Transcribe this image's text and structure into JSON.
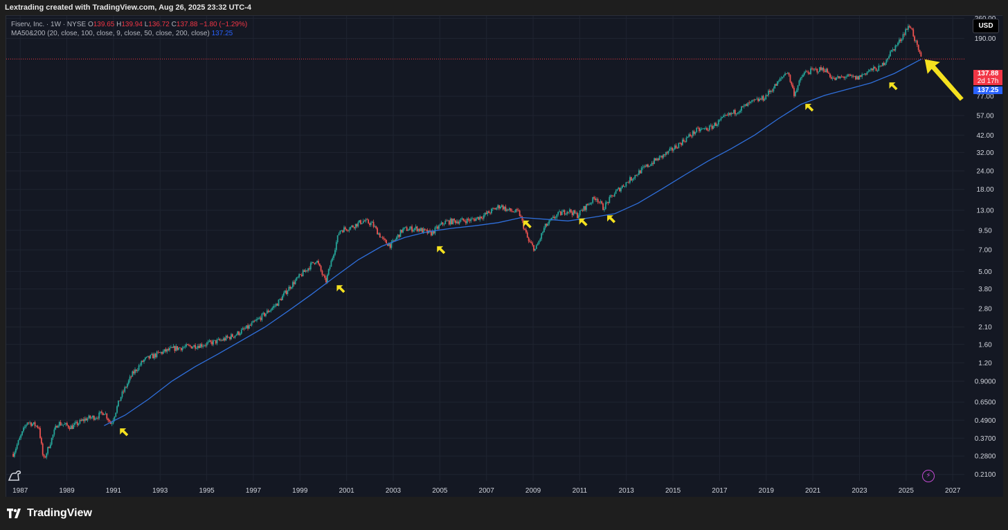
{
  "header": {
    "title": "Lextrading created with TradingView.com, Aug 26, 2025 23:32 UTC-4"
  },
  "legend": {
    "symbol": "Fiserv, Inc. · 1W · NYSE",
    "o_label": "O",
    "o_value": "139.65",
    "h_label": "H",
    "h_value": "139.94",
    "l_label": "L",
    "l_value": "136.72",
    "c_label": "C",
    "c_value": "137.88",
    "change": "−1.80 (−1.29%)",
    "indicator": "MA50&200 (20, close, 100, close, 9, close, 50, close, 200, close)",
    "indicator_value": "137.25"
  },
  "price_scale": {
    "currency": "USD",
    "last_price": "137.88",
    "countdown": "2d 17h",
    "ma_value": "137.25"
  },
  "footer": {
    "brand": "TradingView"
  },
  "colors": {
    "background": "#141823",
    "up": "#26a69a",
    "down": "#ef5350",
    "ma": "#2f6fdb",
    "arrow": "#f5e11f",
    "price_line": "#f23645",
    "ma_tag": "#2962ff"
  },
  "chart_data": {
    "type": "candlestick",
    "title": "Fiserv, Inc. · 1W · NYSE",
    "y_scale": "log",
    "ylim": [
      0.19,
      270
    ],
    "xlim": [
      1986.4,
      2027.5
    ],
    "grid": true,
    "x_ticks": [
      "1987",
      "1989",
      "1991",
      "1993",
      "1995",
      "1997",
      "1999",
      "2001",
      "2003",
      "2005",
      "2007",
      "2009",
      "2011",
      "2013",
      "2015",
      "2017",
      "2019",
      "2021",
      "2023",
      "2025",
      "2027"
    ],
    "y_ticks": [
      "260.00",
      "190.00",
      "77.00",
      "57.00",
      "42.00",
      "32.00",
      "24.00",
      "18.00",
      "13.00",
      "9.50",
      "7.00",
      "5.00",
      "3.80",
      "2.80",
      "2.10",
      "1.60",
      "1.20",
      "0.9000",
      "0.6500",
      "0.4900",
      "0.3700",
      "0.2800",
      "0.2100"
    ],
    "series": [
      {
        "name": "Price (weekly)",
        "x": [
          1986.7,
          1987.3,
          1987.8,
          1988.0,
          1988.6,
          1989.2,
          1989.8,
          1990.3,
          1990.6,
          1990.9,
          1991.3,
          1991.8,
          1992.3,
          1993.0,
          1993.6,
          1994.3,
          1994.9,
          1995.6,
          1996.2,
          1996.8,
          1997.4,
          1998.0,
          1998.6,
          1999.2,
          1999.7,
          2000.1,
          2000.7,
          2001.2,
          2001.7,
          2002.1,
          2002.6,
          2002.9,
          2003.4,
          2004.0,
          2004.6,
          2005.2,
          2005.8,
          2006.4,
          2006.9,
          2007.6,
          2007.9,
          2008.4,
          2008.8,
          2009.1,
          2009.5,
          2010.0,
          2010.5,
          2010.9,
          2011.3,
          2011.7,
          2012.0,
          2012.5,
          2013.0,
          2013.6,
          2014.2,
          2014.8,
          2015.4,
          2016.0,
          2016.6,
          2017.2,
          2017.8,
          2018.4,
          2018.9,
          2019.5,
          2019.9,
          2020.2,
          2020.6,
          2021.0,
          2021.5,
          2021.9,
          2022.4,
          2022.9,
          2023.4,
          2023.9,
          2024.3,
          2024.7,
          2025.0,
          2025.2,
          2025.5,
          2025.65
        ],
        "values": [
          0.29,
          0.48,
          0.44,
          0.26,
          0.47,
          0.44,
          0.5,
          0.52,
          0.56,
          0.46,
          0.7,
          1.0,
          1.25,
          1.4,
          1.5,
          1.55,
          1.6,
          1.7,
          1.85,
          2.1,
          2.5,
          3.0,
          4.0,
          5.0,
          6.0,
          4.2,
          9.5,
          10.0,
          11.0,
          10.5,
          8.0,
          7.5,
          9.6,
          9.8,
          9.0,
          10.8,
          11.0,
          11.2,
          12.0,
          14.0,
          13.0,
          12.5,
          8.0,
          7.0,
          10.0,
          12.0,
          13.0,
          12.0,
          14.0,
          16.0,
          13.5,
          17.0,
          20.0,
          24.0,
          28.0,
          32.0,
          38.0,
          45.0,
          47.0,
          55.0,
          62.0,
          70.0,
          75.0,
          95.0,
          115.0,
          80.0,
          110.0,
          115.0,
          118.0,
          100.0,
          105.0,
          102.0,
          115.0,
          120.0,
          150.0,
          180.0,
          220.0,
          230.0,
          160.0,
          137.88
        ]
      },
      {
        "name": "MA50&200",
        "x": [
          1990.6,
          1991.5,
          1992.5,
          1993.5,
          1994.5,
          1995.5,
          1996.5,
          1997.5,
          1998.5,
          1999.5,
          2000.5,
          2001.5,
          2002.5,
          2003.5,
          2004.5,
          2005.5,
          2006.5,
          2007.5,
          2008.5,
          2009.5,
          2010.5,
          2011.5,
          2012.5,
          2013.5,
          2014.5,
          2015.5,
          2016.5,
          2017.5,
          2018.5,
          2019.5,
          2020.5,
          2021.5,
          2022.5,
          2023.5,
          2024.5,
          2025.65
        ],
        "values": [
          0.45,
          0.53,
          0.68,
          0.9,
          1.13,
          1.38,
          1.7,
          2.1,
          2.7,
          3.5,
          4.6,
          6.0,
          7.4,
          8.5,
          9.3,
          9.8,
          10.2,
          10.7,
          11.6,
          11.3,
          11.0,
          11.6,
          12.3,
          14.5,
          18.0,
          22.5,
          28.0,
          34.0,
          42.0,
          54.0,
          68.0,
          78.0,
          86.0,
          95.0,
          110.0,
          137.25
        ]
      }
    ],
    "annotations": [
      {
        "type": "arrow",
        "x": 1991.1,
        "y": 0.46
      },
      {
        "type": "arrow",
        "x": 2000.4,
        "y": 4.3
      },
      {
        "type": "arrow",
        "x": 2004.7,
        "y": 7.9
      },
      {
        "type": "arrow",
        "x": 2008.4,
        "y": 11.8
      },
      {
        "type": "arrow",
        "x": 2010.8,
        "y": 12.2
      },
      {
        "type": "arrow",
        "x": 2012.0,
        "y": 12.8
      },
      {
        "type": "arrow",
        "x": 2020.5,
        "y": 73.0
      },
      {
        "type": "arrow",
        "x": 2024.1,
        "y": 102.0
      },
      {
        "type": "arrow",
        "x": 2025.8,
        "y": 137.0
      }
    ]
  }
}
